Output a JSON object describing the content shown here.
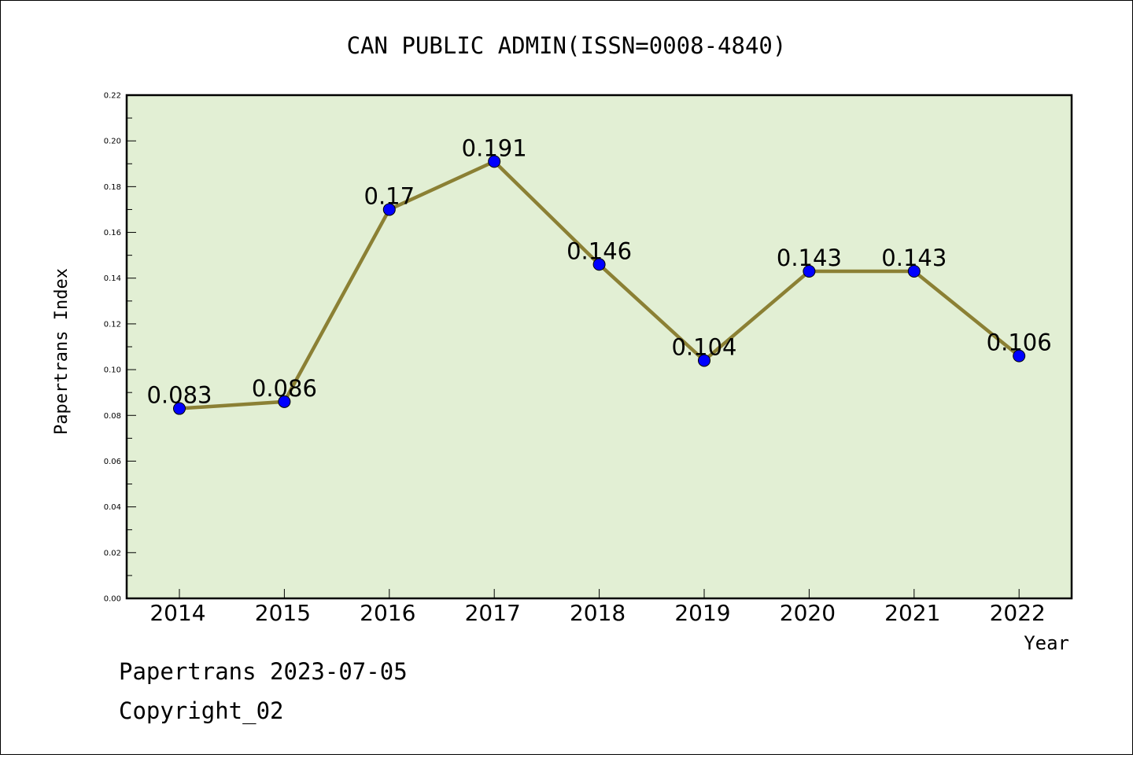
{
  "chart_data": {
    "type": "line",
    "title": "CAN PUBLIC ADMIN(ISSN=0008-4840)",
    "xlabel": "Year",
    "ylabel": "Papertrans Index",
    "x": [
      "2014",
      "2015",
      "2016",
      "2017",
      "2018",
      "2019",
      "2020",
      "2021",
      "2022"
    ],
    "values": [
      0.083,
      0.086,
      0.17,
      0.191,
      0.146,
      0.104,
      0.143,
      0.143,
      0.106
    ],
    "data_labels": [
      "0.083",
      "0.086",
      "0.17",
      "0.191",
      "0.146",
      "0.104",
      "0.143",
      "0.143",
      "0.106"
    ],
    "ylim": [
      0,
      0.22
    ],
    "yticks": [
      "0.00",
      "0.02",
      "0.04",
      "0.06",
      "0.08",
      "0.10",
      "0.12",
      "0.14",
      "0.16",
      "0.18",
      "0.20",
      "0.22"
    ],
    "grid": false,
    "plot_background": "#e2efd4",
    "line_color": "#8b8034",
    "marker_color": "#0000ff"
  },
  "footer": {
    "line1": "Papertrans 2023-07-05",
    "line2": "Copyright_02"
  }
}
